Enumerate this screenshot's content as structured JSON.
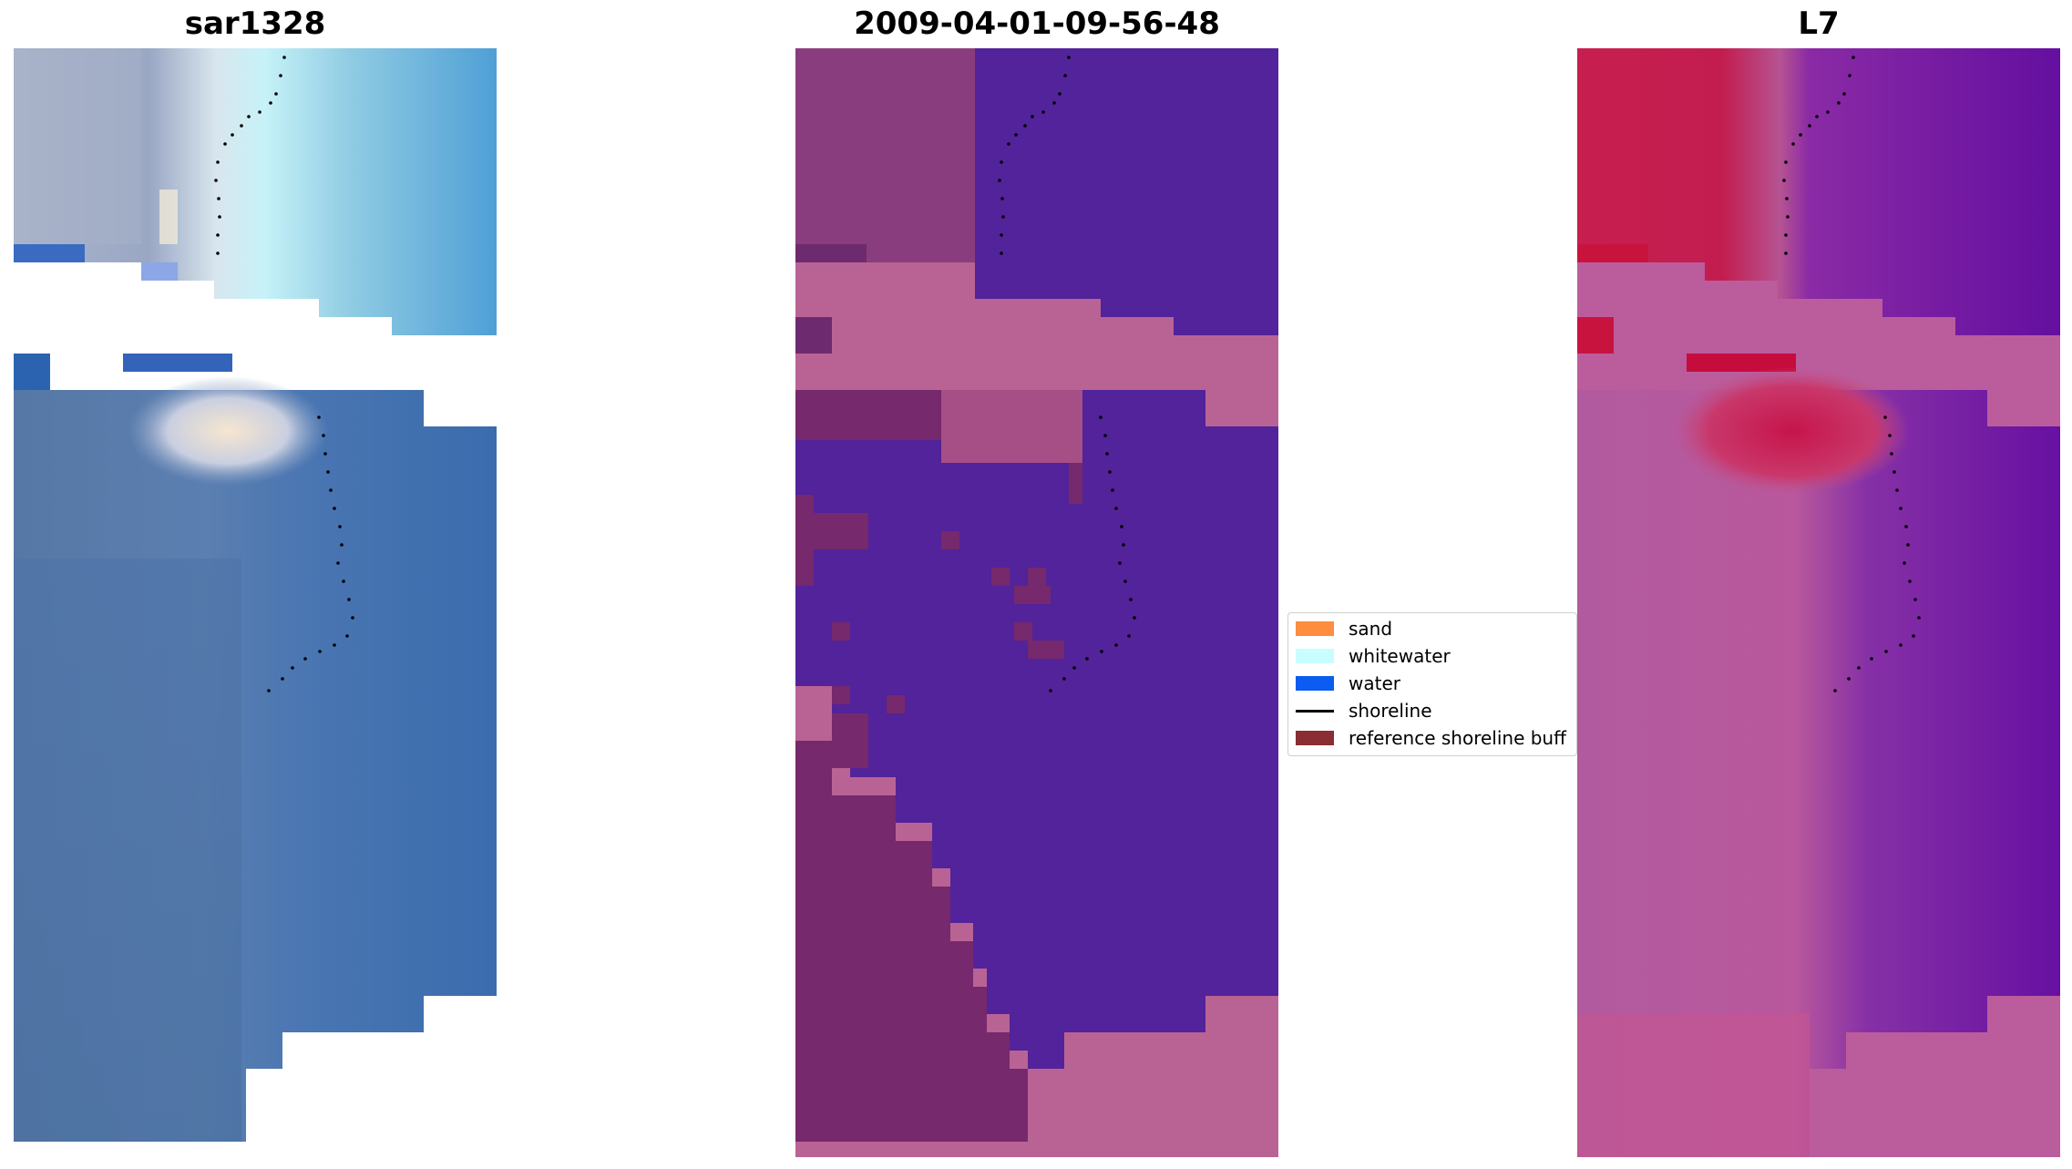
{
  "panels": [
    {
      "id": "rgb",
      "title": "sar1328"
    },
    {
      "id": "classified",
      "title": "2009-04-01-09-56-48"
    },
    {
      "id": "mndwi",
      "title": "L7"
    }
  ],
  "legend": [
    {
      "label": "sand",
      "color": "#ff8c3f",
      "kind": "patch"
    },
    {
      "label": "whitewater",
      "color": "#c8feff",
      "kind": "patch"
    },
    {
      "label": "water",
      "color": "#0b5cf0",
      "kind": "patch"
    },
    {
      "label": "shoreline",
      "color": "#000000",
      "kind": "line"
    },
    {
      "label": "reference shoreline buff",
      "color": "#8b2e33",
      "kind": "patch"
    }
  ],
  "colors": {
    "rgb_water": "#4a6fa6",
    "rgb_offshore": "#3f73b0",
    "rgb_bright_water": "#55a8dd",
    "rgb_whitewater": "#c8f0f4",
    "rgb_sand": "#f2e4cf",
    "buffer_pink": "#b96395",
    "classified_water": "#52239a",
    "classified_land": "#74296a",
    "mndwi_red": "#c71d4d",
    "mndwi_pink": "#bb5d9c",
    "mndwi_purple": "#650d9e",
    "shoreline_black": "#000000"
  }
}
